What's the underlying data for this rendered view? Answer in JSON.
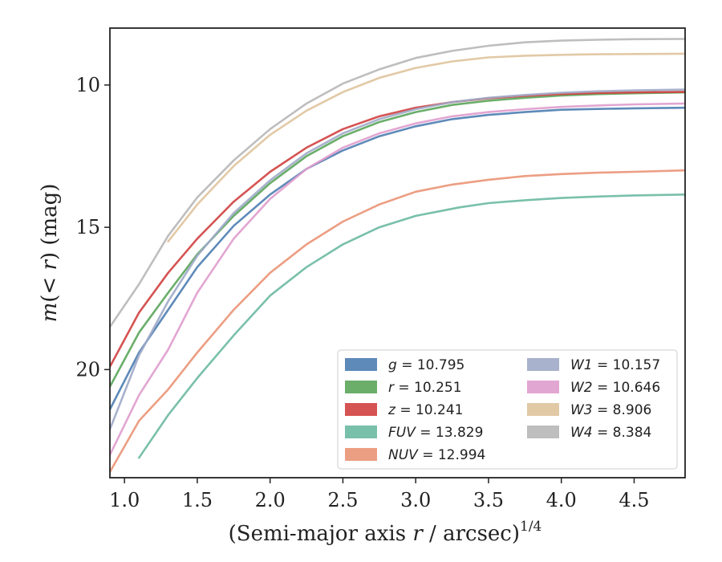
{
  "chart_data": {
    "type": "line",
    "xlabel": "(Semi-major axis r / arcsec)",
    "xlabel_var": "r",
    "xlabel_exponent": "1/4",
    "ylabel": "m(< r) (mag)",
    "xlim": [
      0.9,
      4.85
    ],
    "ylim": [
      23.8,
      8.0
    ],
    "y_inverted": true,
    "x_ticks": [
      1.0,
      1.5,
      2.0,
      2.5,
      3.0,
      3.5,
      4.0,
      4.5
    ],
    "x_tick_labels": [
      "1.0",
      "1.5",
      "2.0",
      "2.5",
      "3.0",
      "3.5",
      "4.0",
      "4.5"
    ],
    "y_ticks": [
      10,
      15,
      20
    ],
    "y_tick_labels": [
      "10",
      "15",
      "20"
    ],
    "grid": false,
    "legend_position": "lower-right",
    "series": [
      {
        "name": "g = 10.795",
        "label_var": "g",
        "label_val": "10.795",
        "color": "#4c7db1",
        "x": [
          0.9,
          1.1,
          1.3,
          1.5,
          1.75,
          2.0,
          2.25,
          2.5,
          2.75,
          3.0,
          3.25,
          3.5,
          3.75,
          4.0,
          4.25,
          4.5,
          4.85
        ],
        "y": [
          21.4,
          19.4,
          17.9,
          16.4,
          14.95,
          13.85,
          12.95,
          12.3,
          11.8,
          11.45,
          11.2,
          11.05,
          10.95,
          10.87,
          10.84,
          10.82,
          10.8
        ]
      },
      {
        "name": "r = 10.251",
        "label_var": "r",
        "label_val": "10.251",
        "color": "#5aa55a",
        "x": [
          0.9,
          1.1,
          1.3,
          1.5,
          1.75,
          2.0,
          2.25,
          2.5,
          2.75,
          3.0,
          3.25,
          3.5,
          3.75,
          4.0,
          4.25,
          4.5,
          4.85
        ],
        "y": [
          20.6,
          18.7,
          17.3,
          15.95,
          14.6,
          13.45,
          12.5,
          11.8,
          11.3,
          10.95,
          10.7,
          10.55,
          10.45,
          10.37,
          10.32,
          10.29,
          10.26
        ]
      },
      {
        "name": "z = 10.241",
        "label_var": "z",
        "label_val": "10.241",
        "color": "#d04040",
        "x": [
          0.9,
          1.1,
          1.3,
          1.5,
          1.75,
          2.0,
          2.25,
          2.5,
          2.75,
          3.0,
          3.25,
          3.5,
          3.75,
          4.0,
          4.25,
          4.5,
          4.85
        ],
        "y": [
          19.9,
          18.0,
          16.6,
          15.4,
          14.1,
          13.05,
          12.2,
          11.55,
          11.1,
          10.8,
          10.6,
          10.47,
          10.38,
          10.32,
          10.28,
          10.26,
          10.24
        ]
      },
      {
        "name": "FUV = 13.829",
        "label_var": "FUV",
        "label_val": "13.829",
        "color": "#6ab9a2",
        "x": [
          1.1,
          1.3,
          1.5,
          1.75,
          2.0,
          2.25,
          2.5,
          2.75,
          3.0,
          3.3,
          3.5,
          3.75,
          4.0,
          4.25,
          4.5,
          4.85
        ],
        "y": [
          23.1,
          21.6,
          20.3,
          18.8,
          17.4,
          16.4,
          15.6,
          15.0,
          14.6,
          14.3,
          14.15,
          14.05,
          13.97,
          13.92,
          13.88,
          13.85
        ]
      },
      {
        "name": "NUV = 12.994",
        "label_var": "NUV",
        "label_val": "12.994",
        "color": "#ea9375",
        "x": [
          0.9,
          1.1,
          1.3,
          1.5,
          1.75,
          2.0,
          2.25,
          2.5,
          2.75,
          3.0,
          3.25,
          3.5,
          3.75,
          4.0,
          4.25,
          4.5,
          4.85
        ],
        "y": [
          23.6,
          21.8,
          20.7,
          19.4,
          17.9,
          16.6,
          15.6,
          14.8,
          14.2,
          13.75,
          13.5,
          13.33,
          13.2,
          13.13,
          13.08,
          13.05,
          13.0
        ]
      },
      {
        "name": "W1 = 10.157",
        "label_var": "W1",
        "label_val": "10.157",
        "color": "#9eaac8",
        "x": [
          0.9,
          1.1,
          1.3,
          1.5,
          1.75,
          2.0,
          2.25,
          2.5,
          2.75,
          3.0,
          3.25,
          3.5,
          3.75,
          4.0,
          4.25,
          4.5,
          4.85
        ],
        "y": [
          22.1,
          19.5,
          17.6,
          16.0,
          14.5,
          13.35,
          12.4,
          11.7,
          11.2,
          10.85,
          10.6,
          10.45,
          10.35,
          10.27,
          10.22,
          10.19,
          10.16
        ]
      },
      {
        "name": "W2 = 10.646",
        "label_var": "W2",
        "label_val": "10.646",
        "color": "#df9ccd",
        "x": [
          0.9,
          1.1,
          1.3,
          1.5,
          1.75,
          2.0,
          2.25,
          2.5,
          2.75,
          3.0,
          3.25,
          3.5,
          3.75,
          4.0,
          4.25,
          4.5,
          4.85
        ],
        "y": [
          23.0,
          20.9,
          19.3,
          17.3,
          15.4,
          14.0,
          12.95,
          12.2,
          11.7,
          11.35,
          11.1,
          10.95,
          10.85,
          10.77,
          10.72,
          10.68,
          10.65
        ]
      },
      {
        "name": "W3 = 8.906",
        "label_var": "W3",
        "label_val": "8.906",
        "color": "#dfc39c",
        "x": [
          1.3,
          1.5,
          1.75,
          2.0,
          2.25,
          2.5,
          2.75,
          3.0,
          3.25,
          3.5,
          3.75,
          4.0,
          4.25,
          4.5,
          4.85
        ],
        "y": [
          15.5,
          14.2,
          12.85,
          11.75,
          10.9,
          10.25,
          9.75,
          9.4,
          9.17,
          9.03,
          8.97,
          8.94,
          8.92,
          8.91,
          8.9
        ]
      },
      {
        "name": "W4 = 8.384",
        "label_var": "W4",
        "label_val": "8.384",
        "color": "#b7b7b7",
        "x": [
          0.9,
          1.1,
          1.3,
          1.5,
          1.75,
          2.0,
          2.25,
          2.5,
          2.75,
          3.0,
          3.25,
          3.5,
          3.75,
          4.0,
          4.25,
          4.5,
          4.85
        ],
        "y": [
          18.5,
          17.0,
          15.3,
          13.95,
          12.65,
          11.55,
          10.65,
          9.95,
          9.45,
          9.05,
          8.8,
          8.62,
          8.5,
          8.44,
          8.41,
          8.39,
          8.38
        ]
      }
    ]
  }
}
